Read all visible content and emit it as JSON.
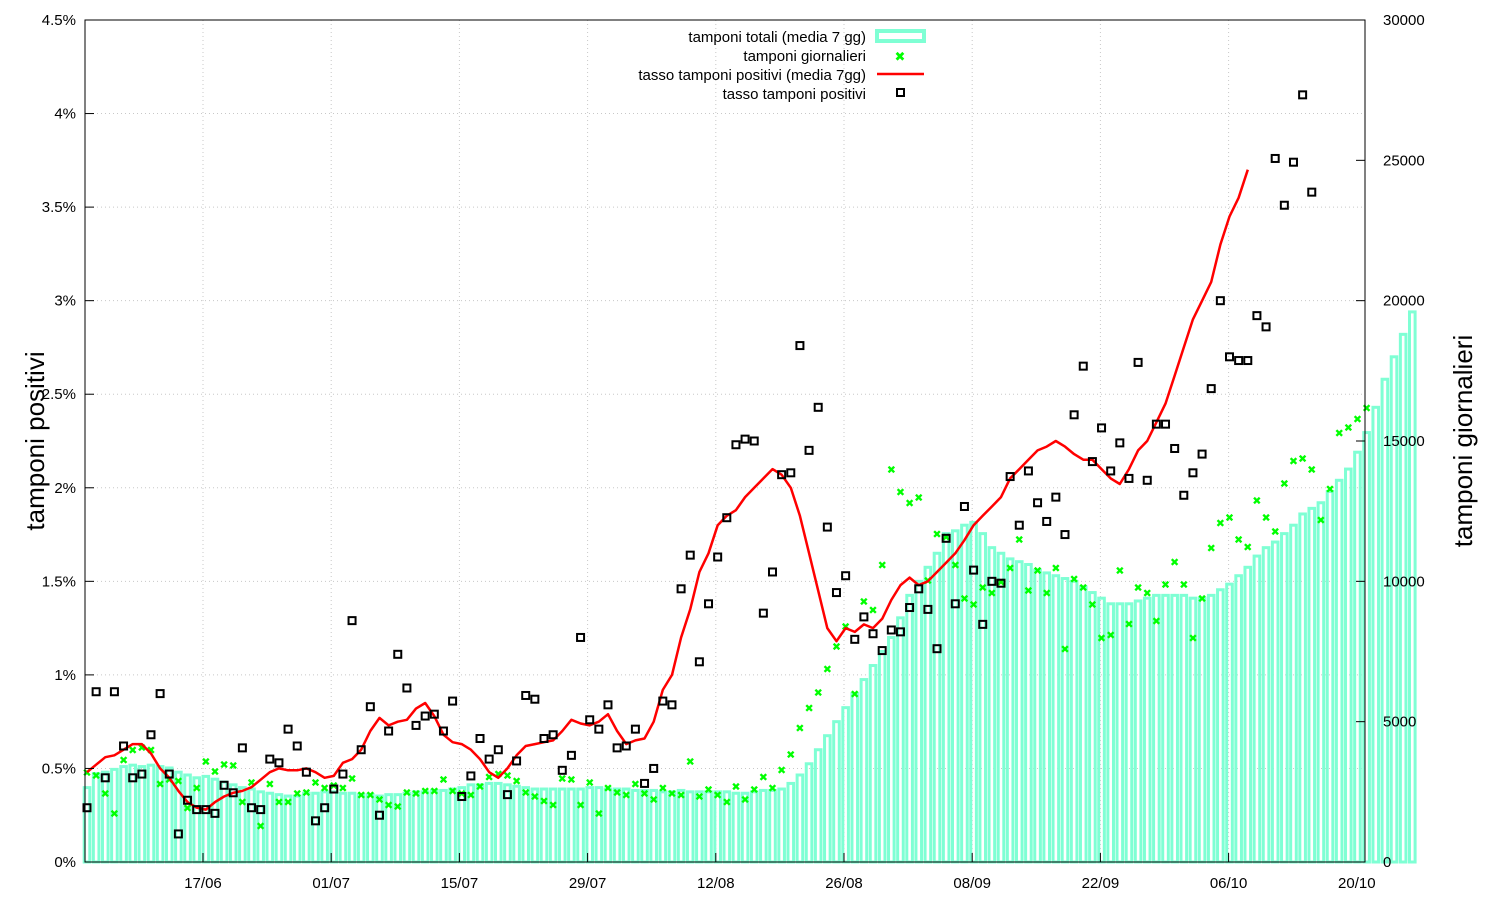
{
  "chart_data": {
    "type": "bar+line+scatter",
    "x_tick_labels": [
      "17/06",
      "01/07",
      "15/07",
      "29/07",
      "12/08",
      "26/08",
      "08/09",
      "22/09",
      "06/10",
      "20/10"
    ],
    "y_left": {
      "label": "tamponi positivi",
      "ticks": [
        "0%",
        "0.5%",
        "1%",
        "1.5%",
        "2%",
        "2.5%",
        "3%",
        "3.5%",
        "4%",
        "4.5%"
      ],
      "range": [
        0,
        4.5
      ],
      "unit": "%"
    },
    "y_right": {
      "label": "tamponi giornalieri",
      "ticks": [
        "0",
        "5000",
        "10000",
        "15000",
        "20000",
        "25000",
        "30000"
      ],
      "range": [
        0,
        30000
      ]
    },
    "grid": true,
    "legend_position": "top-center",
    "colors": {
      "bars": "#7fffd4",
      "daily": "#00ff00",
      "rate_line": "#ff0000",
      "rate_points": "#000000"
    },
    "series": [
      {
        "name": "tamponi totali (media 7 gg)",
        "axis": "right",
        "kind": "bar",
        "values": [
          2650,
          3150,
          3200,
          3300,
          3400,
          3450,
          3400,
          3450,
          3400,
          3350,
          3200,
          3100,
          3000,
          3050,
          2950,
          2850,
          2750,
          2650,
          2600,
          2500,
          2450,
          2400,
          2350,
          2350,
          2450,
          2450,
          2500,
          2500,
          2450,
          2450,
          2400,
          2400,
          2350,
          2400,
          2400,
          2450,
          2500,
          2500,
          2550,
          2550,
          2600,
          2650,
          2750,
          2750,
          2800,
          2800,
          2750,
          2700,
          2650,
          2600,
          2600,
          2600,
          2600,
          2600,
          2600,
          2650,
          2650,
          2600,
          2600,
          2600,
          2550,
          2550,
          2550,
          2500,
          2500,
          2550,
          2500,
          2500,
          2500,
          2500,
          2500,
          2450,
          2450,
          2500,
          2550,
          2550,
          2600,
          2800,
          3100,
          3500,
          4000,
          4500,
          5000,
          5500,
          6000,
          6500,
          7000,
          7500,
          8000,
          8700,
          9500,
          10000,
          10500,
          11000,
          11700,
          11800,
          12000,
          12100,
          11700,
          11200,
          11000,
          10800,
          10700,
          10600,
          10400,
          10300,
          10200,
          10100,
          10000,
          9800,
          9600,
          9400,
          9200,
          9200,
          9200,
          9300,
          9400,
          9500,
          9500,
          9500,
          9500,
          9400,
          9400,
          9500,
          9700,
          9900,
          10200,
          10500,
          10900,
          11200,
          11400,
          11700,
          12000,
          12400,
          12600,
          12800,
          13200,
          13600,
          14000,
          14600,
          15300,
          16200,
          17200,
          18000,
          18800,
          19600
        ]
      },
      {
        "name": "tamponi giornalieri",
        "axis": "right",
        "kind": "scatter",
        "values": [
          3200,
          3100,
          2450,
          1750,
          3650,
          4000,
          4100,
          4000,
          2800,
          2950,
          2900,
          1950,
          2650,
          3600,
          3250,
          3500,
          3450,
          2150,
          2850,
          1300,
          2800,
          2150,
          2150,
          2450,
          2500,
          2850,
          2650,
          2750,
          2650,
          3000,
          2400,
          2400,
          2250,
          2050,
          2000,
          2500,
          2450,
          2550,
          2550,
          2950,
          2550,
          2450,
          2400,
          2700,
          3050,
          3150,
          3100,
          2900,
          2500,
          2350,
          2200,
          2050,
          3000,
          2950,
          2050,
          2850,
          1750,
          2650,
          2500,
          2400,
          2800,
          2450,
          2250,
          2650,
          2450,
          2400,
          3600,
          2350,
          2600,
          2400,
          2150,
          2700,
          2250,
          2600,
          3050,
          2650,
          3300,
          3850,
          4800,
          5500,
          6050,
          6900,
          7700,
          8400,
          6000,
          9300,
          9000,
          10600,
          14000,
          13200,
          12800,
          13000,
          10050,
          11700,
          11600,
          10600,
          9400,
          9200,
          9800,
          9600,
          10000,
          10500,
          11500,
          9700,
          10400,
          9600,
          10500,
          7600,
          10100,
          9800,
          9200,
          8000,
          8100,
          10400,
          8500,
          9800,
          9600,
          8600,
          9900,
          10700,
          9900,
          8000,
          9400,
          11200,
          12100,
          12300,
          11500,
          11250,
          12900,
          12300,
          11800,
          13500,
          14300,
          14400,
          14000,
          12200,
          13300,
          15300,
          15500,
          15800,
          16200
        ]
      },
      {
        "name": "tasso tamponi positivi (media 7gg)",
        "axis": "left",
        "kind": "line",
        "values": [
          0.48,
          0.52,
          0.56,
          0.57,
          0.6,
          0.63,
          0.63,
          0.58,
          0.5,
          0.45,
          0.38,
          0.32,
          0.29,
          0.28,
          0.32,
          0.35,
          0.37,
          0.38,
          0.4,
          0.44,
          0.48,
          0.5,
          0.49,
          0.49,
          0.5,
          0.48,
          0.45,
          0.46,
          0.53,
          0.55,
          0.6,
          0.7,
          0.77,
          0.73,
          0.75,
          0.76,
          0.82,
          0.85,
          0.78,
          0.68,
          0.64,
          0.63,
          0.6,
          0.55,
          0.48,
          0.45,
          0.5,
          0.57,
          0.62,
          0.63,
          0.64,
          0.65,
          0.7,
          0.76,
          0.74,
          0.73,
          0.75,
          0.79,
          0.7,
          0.63,
          0.65,
          0.66,
          0.75,
          0.92,
          1.0,
          1.2,
          1.35,
          1.55,
          1.65,
          1.8,
          1.85,
          1.88,
          1.95,
          2.0,
          2.05,
          2.1,
          2.07,
          2.0,
          1.85,
          1.65,
          1.45,
          1.25,
          1.18,
          1.25,
          1.23,
          1.27,
          1.25,
          1.3,
          1.4,
          1.48,
          1.52,
          1.48,
          1.5,
          1.55,
          1.6,
          1.65,
          1.72,
          1.8,
          1.85,
          1.9,
          1.95,
          2.05,
          2.1,
          2.15,
          2.2,
          2.22,
          2.25,
          2.22,
          2.18,
          2.15,
          2.15,
          2.1,
          2.05,
          2.02,
          2.1,
          2.2,
          2.25,
          2.35,
          2.45,
          2.6,
          2.75,
          2.9,
          3.0,
          3.1,
          3.3,
          3.45,
          3.55,
          3.7
        ]
      },
      {
        "name": "tasso tamponi positivi",
        "axis": "left",
        "kind": "scatter",
        "values": [
          0.29,
          0.91,
          0.45,
          0.91,
          0.62,
          0.45,
          0.47,
          0.68,
          0.9,
          0.47,
          0.15,
          0.33,
          0.28,
          0.28,
          0.26,
          0.41,
          0.37,
          0.61,
          0.29,
          0.28,
          0.55,
          0.53,
          0.71,
          0.62,
          0.48,
          0.22,
          0.29,
          0.39,
          0.47,
          1.29,
          0.6,
          0.83,
          0.25,
          0.7,
          1.11,
          0.93,
          0.73,
          0.78,
          0.79,
          0.7,
          0.86,
          0.35,
          0.46,
          0.66,
          0.55,
          0.6,
          0.36,
          0.54,
          0.89,
          0.87,
          0.66,
          0.68,
          0.49,
          0.57,
          1.2,
          0.76,
          0.71,
          0.84,
          0.61,
          0.62,
          0.71,
          0.42,
          0.5,
          0.86,
          0.84,
          1.46,
          1.64,
          1.07,
          1.38,
          1.63,
          1.84,
          2.23,
          2.26,
          2.25,
          1.33,
          1.55,
          2.07,
          2.08,
          2.76,
          2.2,
          2.43,
          1.79,
          1.44,
          1.53,
          1.19,
          1.31,
          1.22,
          1.13,
          1.24,
          1.23,
          1.36,
          1.46,
          1.35,
          1.14,
          1.73,
          1.38,
          1.9,
          1.56,
          1.27,
          1.5,
          1.49,
          2.06,
          1.8,
          2.09,
          1.92,
          1.82,
          1.95,
          1.75,
          2.39,
          2.65,
          2.14,
          2.32,
          2.09,
          2.24,
          2.05,
          2.67,
          2.04,
          2.34,
          2.34,
          2.21,
          1.96,
          2.08,
          2.18,
          2.53,
          3.0,
          2.7,
          2.68,
          2.68,
          2.92,
          2.86,
          3.76,
          3.51,
          3.74,
          4.1,
          3.58
        ]
      }
    ]
  }
}
